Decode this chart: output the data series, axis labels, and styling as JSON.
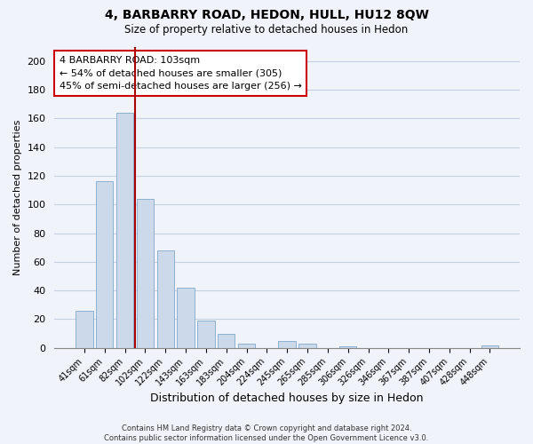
{
  "title": "4, BARBARRY ROAD, HEDON, HULL, HU12 8QW",
  "subtitle": "Size of property relative to detached houses in Hedon",
  "xlabel": "Distribution of detached houses by size in Hedon",
  "ylabel": "Number of detached properties",
  "bar_color": "#ccd9ea",
  "bar_edge_color": "#7fa8c9",
  "vline_color": "#aa0000",
  "vline_bar_idx": 3,
  "categories": [
    "41sqm",
    "61sqm",
    "82sqm",
    "102sqm",
    "122sqm",
    "143sqm",
    "163sqm",
    "183sqm",
    "204sqm",
    "224sqm",
    "245sqm",
    "265sqm",
    "285sqm",
    "306sqm",
    "326sqm",
    "346sqm",
    "367sqm",
    "387sqm",
    "407sqm",
    "428sqm",
    "448sqm"
  ],
  "values": [
    26,
    116,
    164,
    104,
    68,
    42,
    19,
    10,
    3,
    0,
    5,
    3,
    0,
    1,
    0,
    0,
    0,
    0,
    0,
    0,
    2
  ],
  "ylim": [
    0,
    210
  ],
  "yticks": [
    0,
    20,
    40,
    60,
    80,
    100,
    120,
    140,
    160,
    180,
    200
  ],
  "annotation_title": "4 BARBARRY ROAD: 103sqm",
  "annotation_line1": "← 54% of detached houses are smaller (305)",
  "annotation_line2": "45% of semi-detached houses are larger (256) →",
  "footer1": "Contains HM Land Registry data © Crown copyright and database right 2024.",
  "footer2": "Contains public sector information licensed under the Open Government Licence v3.0.",
  "background_color": "#f0f4fa",
  "grid_color": "#c5cfe0"
}
